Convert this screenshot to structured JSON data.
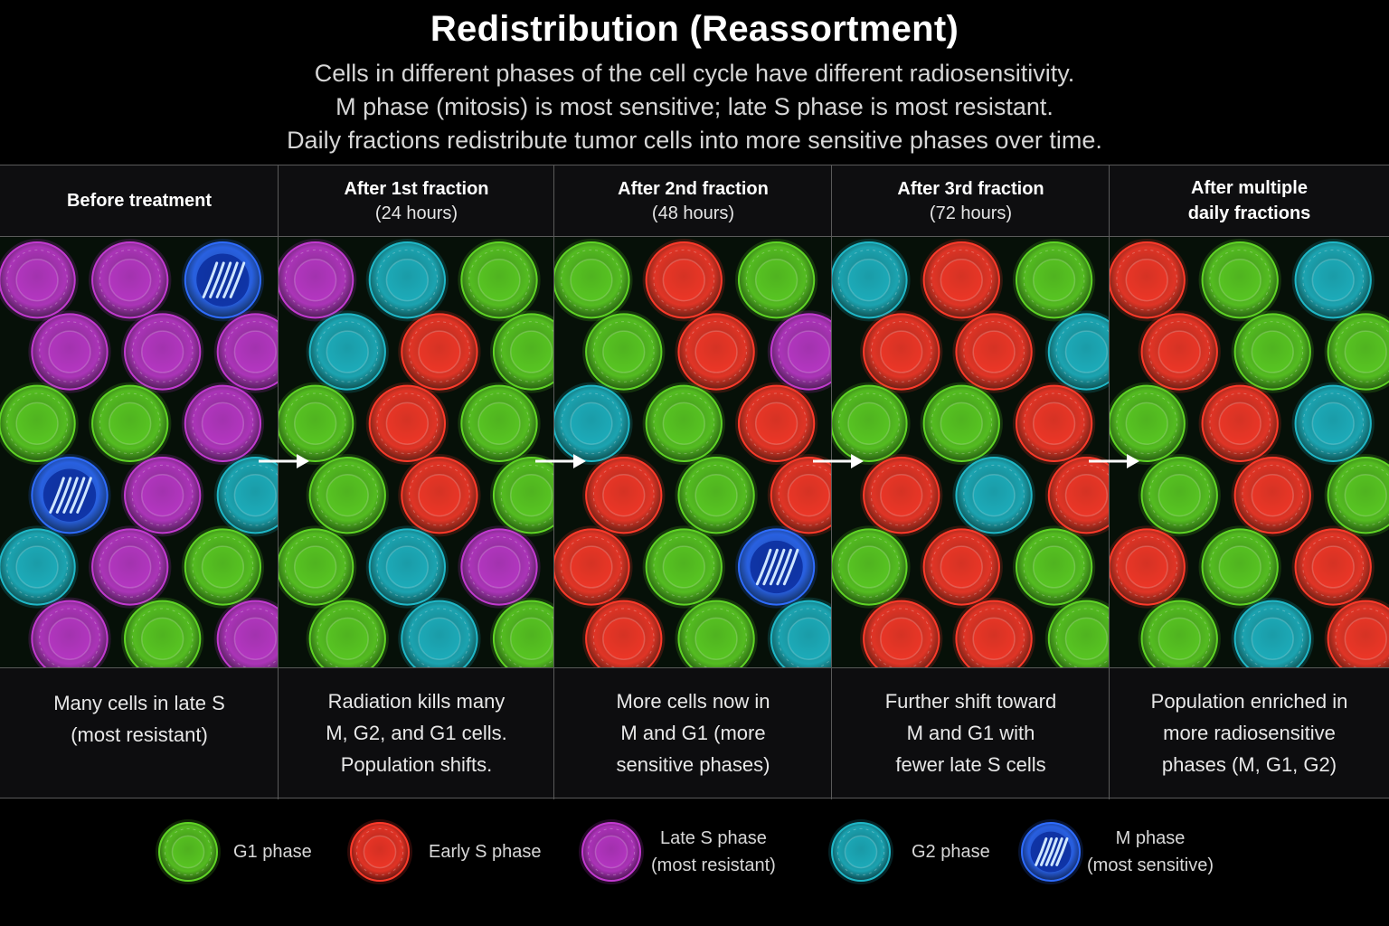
{
  "header": {
    "title": "Redistribution (Reassortment)",
    "subtitle": [
      "Cells in different phases of the cell cycle have different radiosensitivity.",
      "M phase (mitosis) is most sensitive; late S phase is most resistant.",
      "Daily fractions redistribute tumor cells into more sensitive phases over time."
    ]
  },
  "colors": {
    "G1": "#5fd425",
    "earlyS": "#ff3a2a",
    "lateS": "#c23ad0",
    "G2": "#1fb8c8",
    "M": "#2e6cff"
  },
  "panels": [
    {
      "title": "Before treatment",
      "subtitle": "",
      "caption": "Many cells in late S\n(most resistant)",
      "cells": [
        "lateS",
        "lateS",
        "M",
        "lateS",
        "lateS",
        "lateS",
        "G1",
        "G1",
        "lateS",
        "M",
        "lateS",
        "G2",
        "G2",
        "lateS",
        "G1",
        "lateS",
        "G1",
        "lateS"
      ]
    },
    {
      "title": "After 1st fraction",
      "subtitle": "(24 hours)",
      "caption": "Radiation kills many\nM, G2, and G1 cells.\nPopulation shifts.",
      "cells": [
        "lateS",
        "G2",
        "G1",
        "G2",
        "earlyS",
        "G1",
        "G1",
        "earlyS",
        "G1",
        "G1",
        "earlyS",
        "G1",
        "G1",
        "G2",
        "lateS",
        "G1",
        "G2",
        "G1"
      ]
    },
    {
      "title": "After 2nd fraction",
      "subtitle": "(48 hours)",
      "caption": "More cells now in\nM and G1 (more\nsensitive phases)",
      "cells": [
        "G1",
        "earlyS",
        "G1",
        "G1",
        "earlyS",
        "lateS",
        "G2",
        "G1",
        "earlyS",
        "earlyS",
        "G1",
        "earlyS",
        "earlyS",
        "G1",
        "M",
        "earlyS",
        "G1",
        "G2"
      ]
    },
    {
      "title": "After 3rd fraction",
      "subtitle": "(72 hours)",
      "caption": "Further shift toward\nM and G1 with\nfewer late S cells",
      "cells": [
        "G2",
        "earlyS",
        "G1",
        "earlyS",
        "earlyS",
        "G2",
        "G1",
        "G1",
        "earlyS",
        "earlyS",
        "G2",
        "earlyS",
        "G1",
        "earlyS",
        "G1",
        "earlyS",
        "earlyS",
        "G1"
      ]
    },
    {
      "title": "After multiple",
      "subtitle": "daily fractions",
      "caption": "Population enriched in\nmore radiosensitive\nphases (M, G1, G2)",
      "cells": [
        "earlyS",
        "G1",
        "G2",
        "earlyS",
        "G1",
        "G1",
        "G1",
        "earlyS",
        "G2",
        "G1",
        "earlyS",
        "G1",
        "earlyS",
        "G1",
        "earlyS",
        "G1",
        "G2",
        "earlyS"
      ]
    }
  ],
  "legend": [
    {
      "key": "G1",
      "label": "G1 phase"
    },
    {
      "key": "earlyS",
      "label": "Early S phase"
    },
    {
      "key": "lateS",
      "label": "Late S phase\n(most resistant)"
    },
    {
      "key": "G2",
      "label": "G2 phase"
    },
    {
      "key": "M",
      "label": "M phase\n(most sensitive)"
    }
  ]
}
